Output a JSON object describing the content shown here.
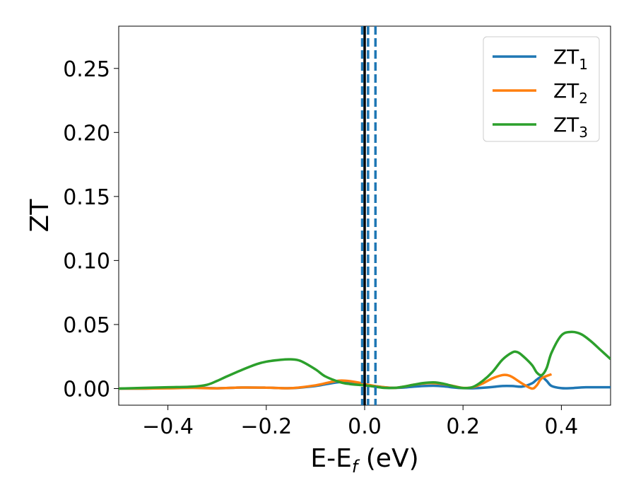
{
  "chart_data": {
    "type": "line",
    "title": "",
    "xlabel": "E-E",
    "xlabel_sub": "f",
    "xlabel_unit": " (eV)",
    "ylabel": "ZT",
    "xlim": [
      -0.5,
      0.5
    ],
    "ylim": [
      -0.013,
      0.283
    ],
    "xticks": [
      -0.4,
      -0.2,
      0.0,
      0.2,
      0.4
    ],
    "xtick_labels": [
      "−0.4",
      "−0.2",
      "0.0",
      "0.2",
      "0.4"
    ],
    "yticks": [
      0.0,
      0.05,
      0.1,
      0.15,
      0.2,
      0.25
    ],
    "ytick_labels": [
      "0.00",
      "0.05",
      "0.10",
      "0.15",
      "0.20",
      "0.25"
    ],
    "grid": false,
    "legend_position": "top-right",
    "vlines": [
      {
        "x": 0.0,
        "style": "solid",
        "color": "#000000"
      },
      {
        "x": -0.005,
        "style": "dashed",
        "color": "#1f77b4"
      },
      {
        "x": 0.007,
        "style": "dashed",
        "color": "#1f77b4"
      },
      {
        "x": 0.022,
        "style": "dashed",
        "color": "#1f77b4"
      }
    ],
    "series": [
      {
        "name": "ZT",
        "sub": "1",
        "color": "#1f77b4",
        "x": [
          -0.5,
          -0.45,
          -0.4,
          -0.35,
          -0.3,
          -0.25,
          -0.2,
          -0.15,
          -0.1,
          -0.07,
          -0.05,
          -0.03,
          -0.01,
          0.0,
          0.02,
          0.04,
          0.06,
          0.08,
          0.1,
          0.12,
          0.14,
          0.16,
          0.18,
          0.2,
          0.22,
          0.24,
          0.26,
          0.28,
          0.3,
          0.32,
          0.34,
          0.35,
          0.36,
          0.37,
          0.38,
          0.4,
          0.42,
          0.45,
          0.5
        ],
        "y": [
          0.0,
          0.0,
          0.0005,
          0.0008,
          0.0002,
          0.0008,
          0.0007,
          0.0003,
          0.002,
          0.004,
          0.005,
          0.0045,
          0.0035,
          0.003,
          0.002,
          0.001,
          0.0005,
          0.0008,
          0.0015,
          0.002,
          0.0022,
          0.0018,
          0.0009,
          0.0003,
          0.0002,
          0.0006,
          0.0012,
          0.002,
          0.002,
          0.0015,
          0.004,
          0.007,
          0.009,
          0.006,
          0.002,
          0.0003,
          0.0003,
          0.001,
          0.001
        ]
      },
      {
        "name": "ZT",
        "sub": "2",
        "color": "#ff7f0e",
        "x": [
          -0.5,
          -0.45,
          -0.4,
          -0.35,
          -0.3,
          -0.25,
          -0.2,
          -0.15,
          -0.1,
          -0.07,
          -0.05,
          -0.03,
          -0.01,
          0.0,
          0.02,
          0.04,
          0.06,
          0.08,
          0.1,
          0.12,
          0.14,
          0.16,
          0.18,
          0.2,
          0.22,
          0.24,
          0.26,
          0.28,
          0.29,
          0.3,
          0.32,
          0.34,
          0.35,
          0.36,
          0.38
        ],
        "y": [
          0.0,
          0.0,
          0.0002,
          0.0005,
          0.0002,
          0.0008,
          0.0007,
          0.0003,
          0.0025,
          0.005,
          0.0062,
          0.0058,
          0.0045,
          0.0035,
          0.002,
          0.001,
          0.0005,
          0.0015,
          0.003,
          0.004,
          0.0042,
          0.0035,
          0.002,
          0.0005,
          0.001,
          0.004,
          0.008,
          0.0105,
          0.0105,
          0.009,
          0.004,
          0.0,
          0.0025,
          0.008,
          0.0112
        ]
      },
      {
        "name": "ZT",
        "sub": "3",
        "color": "#2ca02c",
        "x": [
          -0.5,
          -0.45,
          -0.4,
          -0.35,
          -0.32,
          -0.3,
          -0.28,
          -0.25,
          -0.22,
          -0.2,
          -0.17,
          -0.15,
          -0.13,
          -0.1,
          -0.08,
          -0.05,
          -0.03,
          -0.01,
          0.0,
          0.02,
          0.04,
          0.06,
          0.08,
          0.1,
          0.12,
          0.14,
          0.16,
          0.18,
          0.2,
          0.22,
          0.24,
          0.26,
          0.28,
          0.3,
          0.31,
          0.32,
          0.34,
          0.35,
          0.36,
          0.37,
          0.38,
          0.4,
          0.42,
          0.44,
          0.46,
          0.48,
          0.5
        ],
        "y": [
          0.0,
          0.0005,
          0.001,
          0.0015,
          0.003,
          0.006,
          0.0095,
          0.0145,
          0.019,
          0.021,
          0.0225,
          0.0228,
          0.0215,
          0.015,
          0.0095,
          0.005,
          0.0035,
          0.0028,
          0.0025,
          0.0015,
          0.0005,
          0.0005,
          0.0015,
          0.003,
          0.0043,
          0.0048,
          0.0038,
          0.0018,
          0.0004,
          0.0012,
          0.006,
          0.013,
          0.0225,
          0.0282,
          0.0285,
          0.026,
          0.0185,
          0.0125,
          0.0105,
          0.016,
          0.028,
          0.0415,
          0.0442,
          0.0425,
          0.037,
          0.03,
          0.023
        ]
      }
    ]
  }
}
